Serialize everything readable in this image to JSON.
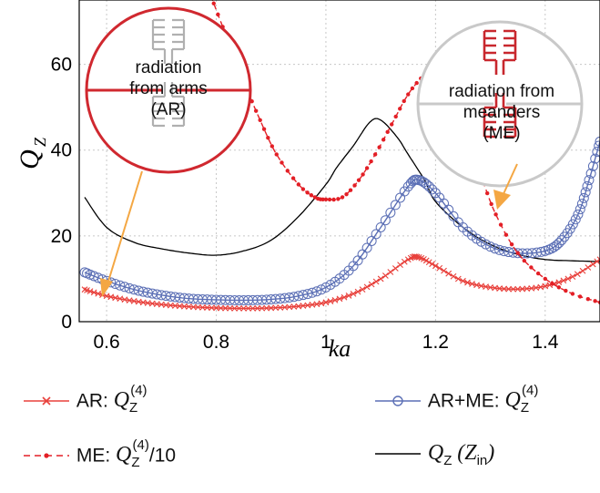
{
  "chart_data": {
    "type": "line",
    "xlabel_base": "ka",
    "ylabel_base": "Q",
    "ylabel_sub": "Z",
    "xlim": [
      0.55,
      1.5
    ],
    "ylim": [
      0,
      75
    ],
    "xticks": [
      0.6,
      0.8,
      1,
      1.2,
      1.4
    ],
    "xtick_labels": [
      "0.6",
      "0.8",
      "1",
      "1.2",
      "1.4"
    ],
    "yticks": [
      0,
      20,
      40,
      60
    ],
    "ytick_labels": [
      "0",
      "20",
      "40",
      "60"
    ],
    "grid": true,
    "series": [
      {
        "key": "ar",
        "name": "AR",
        "color": "#e8413c",
        "marker": "x",
        "line": "solid",
        "x": [
          0.56,
          0.6,
          0.65,
          0.7,
          0.75,
          0.8,
          0.85,
          0.9,
          0.95,
          1.0,
          1.05,
          1.1,
          1.15,
          1.17,
          1.2,
          1.25,
          1.3,
          1.35,
          1.4,
          1.45,
          1.5
        ],
        "y": [
          7.5,
          6.0,
          4.8,
          4.0,
          3.5,
          3.2,
          3.1,
          3.2,
          3.6,
          4.5,
          6.5,
          10.0,
          14.5,
          15.0,
          13.0,
          9.5,
          8.0,
          7.6,
          8.3,
          10.5,
          14.5
        ]
      },
      {
        "key": "me",
        "name": "ME",
        "color": "#e31f26",
        "marker": "dot",
        "line": "dashed",
        "x": [
          0.79,
          0.82,
          0.85,
          0.88,
          0.91,
          0.95,
          0.98,
          1.0,
          1.03,
          1.06,
          1.09,
          1.12,
          1.15,
          1.18,
          1.2,
          1.22,
          1.25,
          1.28,
          1.31,
          1.35,
          1.4,
          1.45,
          1.5
        ],
        "y": [
          76,
          66,
          56,
          47,
          39,
          32,
          29,
          28.5,
          29,
          33,
          39,
          46,
          53,
          57.5,
          58,
          54,
          45,
          35,
          25,
          16,
          10,
          6.5,
          4.5
        ]
      },
      {
        "key": "arme",
        "name": "AR+ME",
        "color": "#5b6fb5",
        "marker": "o",
        "line": "solid",
        "x": [
          0.56,
          0.6,
          0.65,
          0.7,
          0.75,
          0.8,
          0.85,
          0.9,
          0.95,
          1.0,
          1.05,
          1.1,
          1.15,
          1.17,
          1.2,
          1.25,
          1.3,
          1.35,
          1.4,
          1.43,
          1.46,
          1.48,
          1.5
        ],
        "y": [
          11.5,
          9.5,
          7.5,
          6.2,
          5.4,
          5.1,
          5.0,
          5.2,
          6.0,
          8.0,
          13.0,
          22.0,
          31.5,
          33.0,
          30.0,
          22.0,
          17.5,
          16.0,
          16.5,
          19.0,
          25.0,
          33.0,
          42.0
        ]
      },
      {
        "key": "qz",
        "name": "Zin",
        "color": "#000000",
        "marker": "none",
        "line": "solid",
        "x": [
          0.56,
          0.6,
          0.65,
          0.7,
          0.75,
          0.8,
          0.85,
          0.9,
          0.95,
          1.0,
          1.02,
          1.05,
          1.08,
          1.1,
          1.13,
          1.15,
          1.18,
          1.2,
          1.25,
          1.3,
          1.35,
          1.4,
          1.45,
          1.5
        ],
        "y": [
          29,
          22,
          18.5,
          17,
          16,
          15.5,
          16.5,
          19,
          24.5,
          32,
          36,
          41,
          46.5,
          47,
          43,
          39,
          33,
          28,
          22,
          18,
          15.7,
          14.5,
          14.2,
          14.0
        ]
      }
    ],
    "annotations": {
      "left_bubble_text": [
        "radiation",
        "from arms",
        "(AR)"
      ],
      "right_bubble_text": [
        "radiation from",
        "meanders",
        "(ME)"
      ],
      "arrow_color": "#f4a743",
      "left_bubble_color": "#d0282f",
      "right_bubble_color": "#c9c9c9"
    }
  },
  "legend": {
    "ar": {
      "label": "AR:",
      "sym": "Q",
      "sub": "Z",
      "sup": "(4)",
      "suffix": ""
    },
    "me": {
      "label": "ME:",
      "sym": "Q",
      "sub": "Z",
      "sup": "(4)",
      "suffix": "/10"
    },
    "arme": {
      "label": "AR+ME:",
      "sym": "Q",
      "sub": "Z",
      "sup": "(4)",
      "suffix": ""
    },
    "qz": {
      "label": "",
      "sym": "Q",
      "sub": "Z",
      "paren_sym": "Z",
      "paren_sub": "in"
    }
  }
}
